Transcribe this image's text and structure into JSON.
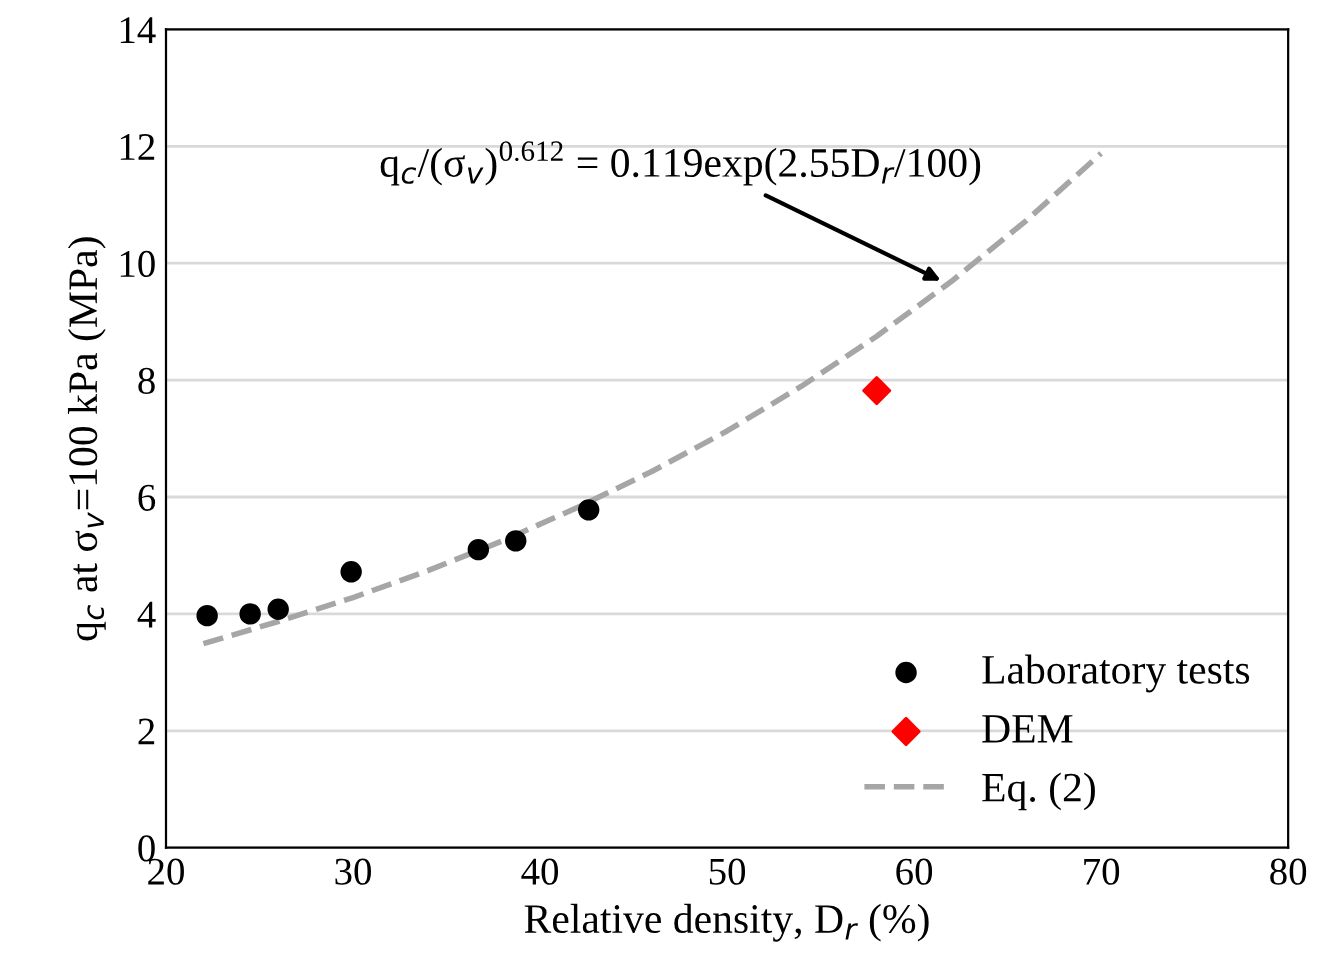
{
  "chart_data": {
    "type": "scatter",
    "xlabel": "Relative density, D$_{r}$ (%)",
    "ylabel": "q$_{c}$ at σ$_{v}$=100 kPa (MPa)",
    "xlim": [
      20,
      80
    ],
    "xticks": [
      20,
      30,
      40,
      50,
      60,
      70,
      80
    ],
    "ylim": [
      0,
      14
    ],
    "yticks": [
      0,
      2,
      4,
      6,
      8,
      10,
      12,
      14
    ],
    "grid": "y",
    "legend": "lower right",
    "series": [
      {
        "name": "Laboratory tests",
        "marker": "circle",
        "color": "#000000",
        "x": [
          22.2,
          24.5,
          26,
          29.9,
          36.7,
          38.7,
          42.6
        ],
        "values": [
          3.97,
          4.0,
          4.08,
          4.72,
          5.1,
          5.25,
          5.78
        ]
      },
      {
        "name": "DEM",
        "marker": "diamond",
        "color": "#ff0000",
        "x": [
          58
        ],
        "values": [
          7.82
        ]
      },
      {
        "name": "Eq. (2)",
        "type": "line",
        "marker": "none",
        "line_style": "dashed",
        "color": "#a6a6a6",
        "x": [
          22,
          26,
          30,
          34,
          38,
          42,
          46,
          50,
          54,
          58,
          62,
          66,
          70
        ],
        "values": [
          3.49,
          3.87,
          4.28,
          4.74,
          5.25,
          5.82,
          6.44,
          7.13,
          7.9,
          8.75,
          9.69,
          10.73,
          11.88
        ]
      }
    ],
    "annotations": [
      "q$_{c}$/(σ$_{v}$)$^{0.612}$ = 0.119exp(2.55D$_{r}$/100)"
    ]
  }
}
